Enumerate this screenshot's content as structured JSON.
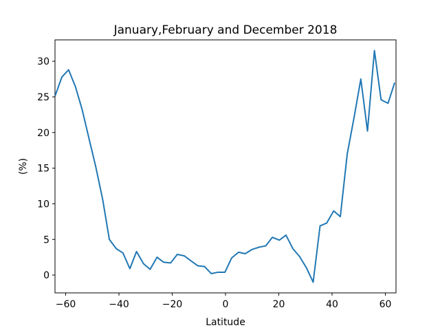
{
  "chart_data": {
    "type": "line",
    "title": "January,February and December 2018",
    "xlabel": "Latitude",
    "ylabel": "(%)",
    "xlim": [
      -64,
      64
    ],
    "ylim": [
      -2.5,
      33
    ],
    "x_ticks": [
      -60,
      -40,
      -20,
      0,
      20,
      40,
      60
    ],
    "x_tick_labels": [
      "−60",
      "−40",
      "−20",
      "0",
      "20",
      "40",
      "60"
    ],
    "y_ticks": [
      0,
      5,
      10,
      15,
      20,
      25,
      30
    ],
    "y_tick_labels": [
      "0",
      "5",
      "10",
      "15",
      "20",
      "25",
      "30"
    ],
    "grid": false,
    "color": "#1f77b4",
    "series": [
      {
        "x": [
          -64,
          -61.4,
          -58.9,
          -56.3,
          -53.8,
          -51.2,
          -48.7,
          -46.1,
          -43.6,
          -41,
          -38.5,
          -35.9,
          -33.4,
          -30.8,
          -28.3,
          -25.7,
          -23.2,
          -20.6,
          -18.1,
          -15.5,
          -13,
          -10.4,
          -7.9,
          -5.3,
          -2.8,
          -0.2,
          2.3,
          4.9,
          7.4,
          10,
          12.5,
          15.1,
          17.6,
          20.2,
          22.7,
          25.3,
          27.8,
          30.4,
          32.9,
          35.5,
          38,
          40.6,
          43.1,
          45.7,
          48.2,
          50.8,
          53.3,
          55.9,
          58.4,
          61,
          63.5
        ],
        "y": [
          25.1,
          27.8,
          28.8,
          26.4,
          23.2,
          19.1,
          15.2,
          10.6,
          5,
          3.7,
          3.1,
          0.9,
          3.3,
          1.6,
          0.8,
          2.5,
          1.8,
          1.7,
          2.9,
          2.7,
          2,
          1.3,
          1.2,
          0.2,
          0.4,
          0.4,
          2.4,
          3.2,
          3,
          3.6,
          3.9,
          4.1,
          5.3,
          4.9,
          5.6,
          3.7,
          2.6,
          1,
          -1,
          6.9,
          7.3,
          9,
          8.2,
          17,
          22,
          27.5,
          20.2,
          31.5,
          24.6,
          24.1,
          27
        ]
      }
    ]
  }
}
